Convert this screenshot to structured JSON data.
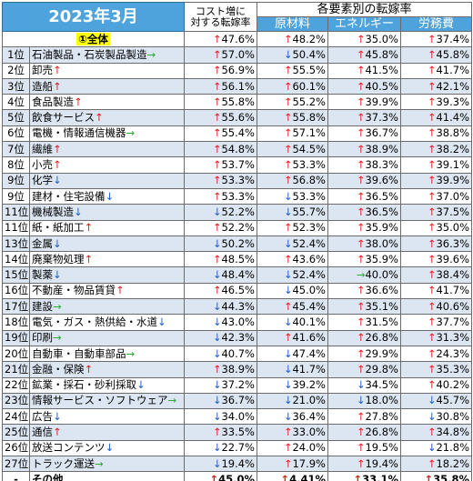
{
  "header": {
    "title": "2023年3月",
    "cost_label_line1": "コスト増に",
    "cost_label_line2": "対する転嫁率",
    "group_label": "各要素別の転嫁率",
    "col_raw": "原材料",
    "col_energy": "エネルギー",
    "col_labor": "労務費"
  },
  "colors": {
    "header_blue": "#4ea3dc",
    "alt_row": "#dce6f2",
    "highlight": "#ffff00",
    "up": "#e02020",
    "down": "#1a5fd0",
    "flat": "#2eaa3a"
  },
  "arrow_glyphs": {
    "up": "↑",
    "down": "↓",
    "flat": "→"
  },
  "total": {
    "label": "①全体",
    "cost": {
      "a": "up",
      "v": "47.6%"
    },
    "raw": {
      "a": "up",
      "v": "48.2%"
    },
    "energy": {
      "a": "up",
      "v": "35.0%"
    },
    "labor": {
      "a": "up",
      "v": "37.4%"
    }
  },
  "rows": [
    {
      "rank": "1位",
      "name": "石油製品・石炭製品製造",
      "trend": "flat",
      "cost": {
        "a": "up",
        "v": "57.0%"
      },
      "raw": {
        "a": "down",
        "v": "50.4%"
      },
      "energy": {
        "a": "up",
        "v": "45.8%"
      },
      "labor": {
        "a": "up",
        "v": "45.8%"
      }
    },
    {
      "rank": "2位",
      "name": "卸売",
      "trend": "up",
      "cost": {
        "a": "up",
        "v": "56.9%"
      },
      "raw": {
        "a": "up",
        "v": "55.5%"
      },
      "energy": {
        "a": "up",
        "v": "41.5%"
      },
      "labor": {
        "a": "up",
        "v": "41.7%"
      }
    },
    {
      "rank": "3位",
      "name": "造船",
      "trend": "up",
      "cost": {
        "a": "up",
        "v": "56.1%"
      },
      "raw": {
        "a": "up",
        "v": "60.1%"
      },
      "energy": {
        "a": "up",
        "v": "40.5%"
      },
      "labor": {
        "a": "up",
        "v": "42.1%"
      }
    },
    {
      "rank": "4位",
      "name": "食品製造",
      "trend": "up",
      "cost": {
        "a": "up",
        "v": "55.8%"
      },
      "raw": {
        "a": "up",
        "v": "55.2%"
      },
      "energy": {
        "a": "up",
        "v": "39.9%"
      },
      "labor": {
        "a": "up",
        "v": "39.3%"
      }
    },
    {
      "rank": "5位",
      "name": "飲食サービス",
      "trend": "up",
      "cost": {
        "a": "up",
        "v": "55.6%"
      },
      "raw": {
        "a": "up",
        "v": "55.8%"
      },
      "energy": {
        "a": "up",
        "v": "37.3%"
      },
      "labor": {
        "a": "up",
        "v": "41.4%"
      }
    },
    {
      "rank": "6位",
      "name": "電機・情報通信機器",
      "trend": "flat",
      "cost": {
        "a": "up",
        "v": "55.4%"
      },
      "raw": {
        "a": "up",
        "v": "57.1%"
      },
      "energy": {
        "a": "up",
        "v": "36.7%"
      },
      "labor": {
        "a": "up",
        "v": "38.8%"
      }
    },
    {
      "rank": "7位",
      "name": "繊維",
      "trend": "up",
      "cost": {
        "a": "up",
        "v": "54.8%"
      },
      "raw": {
        "a": "up",
        "v": "54.5%"
      },
      "energy": {
        "a": "up",
        "v": "38.9%"
      },
      "labor": {
        "a": "up",
        "v": "38.2%"
      }
    },
    {
      "rank": "8位",
      "name": "小売",
      "trend": "up",
      "cost": {
        "a": "up",
        "v": "53.7%"
      },
      "raw": {
        "a": "up",
        "v": "53.3%"
      },
      "energy": {
        "a": "up",
        "v": "38.3%"
      },
      "labor": {
        "a": "up",
        "v": "39.1%"
      }
    },
    {
      "rank": "9位",
      "name": "化学",
      "trend": "down",
      "cost": {
        "a": "up",
        "v": "53.3%"
      },
      "raw": {
        "a": "up",
        "v": "56.8%"
      },
      "energy": {
        "a": "up",
        "v": "39.6%"
      },
      "labor": {
        "a": "up",
        "v": "39.9%"
      }
    },
    {
      "rank": "9位",
      "name": "建材・住宅設備",
      "trend": "down",
      "cost": {
        "a": "up",
        "v": "53.3%"
      },
      "raw": {
        "a": "down",
        "v": "53.3%"
      },
      "energy": {
        "a": "up",
        "v": "36.5%"
      },
      "labor": {
        "a": "up",
        "v": "37.0%"
      }
    },
    {
      "rank": "11位",
      "name": "機械製造",
      "trend": "down",
      "cost": {
        "a": "down",
        "v": "52.2%"
      },
      "raw": {
        "a": "down",
        "v": "55.7%"
      },
      "energy": {
        "a": "up",
        "v": "36.5%"
      },
      "labor": {
        "a": "up",
        "v": "37.5%"
      }
    },
    {
      "rank": "11位",
      "name": "紙・紙加工",
      "trend": "up",
      "cost": {
        "a": "up",
        "v": "52.2%"
      },
      "raw": {
        "a": "up",
        "v": "52.3%"
      },
      "energy": {
        "a": "up",
        "v": "35.9%"
      },
      "labor": {
        "a": "up",
        "v": "35.0%"
      }
    },
    {
      "rank": "13位",
      "name": "金属",
      "trend": "down",
      "cost": {
        "a": "down",
        "v": "50.2%"
      },
      "raw": {
        "a": "down",
        "v": "52.4%"
      },
      "energy": {
        "a": "up",
        "v": "38.0%"
      },
      "labor": {
        "a": "up",
        "v": "36.3%"
      }
    },
    {
      "rank": "14位",
      "name": "廃棄物処理",
      "trend": "up",
      "cost": {
        "a": "up",
        "v": "48.5%"
      },
      "raw": {
        "a": "up",
        "v": "43.6%"
      },
      "energy": {
        "a": "up",
        "v": "35.9%"
      },
      "labor": {
        "a": "up",
        "v": "39.6%"
      }
    },
    {
      "rank": "15位",
      "name": "製薬",
      "trend": "down",
      "cost": {
        "a": "down",
        "v": "48.4%"
      },
      "raw": {
        "a": "down",
        "v": "52.4%"
      },
      "energy": {
        "a": "flat",
        "v": "40.0%"
      },
      "labor": {
        "a": "up",
        "v": "38.4%"
      }
    },
    {
      "rank": "16位",
      "name": "不動産・物品賃貸",
      "trend": "up",
      "cost": {
        "a": "up",
        "v": "46.5%"
      },
      "raw": {
        "a": "down",
        "v": "45.0%"
      },
      "energy": {
        "a": "up",
        "v": "36.6%"
      },
      "labor": {
        "a": "up",
        "v": "41.7%"
      }
    },
    {
      "rank": "17位",
      "name": "建設",
      "trend": "flat",
      "cost": {
        "a": "down",
        "v": "44.3%"
      },
      "raw": {
        "a": "up",
        "v": "45.4%"
      },
      "energy": {
        "a": "up",
        "v": "35.1%"
      },
      "labor": {
        "a": "up",
        "v": "40.6%"
      }
    },
    {
      "rank": "18位",
      "name": "電気・ガス・熱供給・水道",
      "trend": "down",
      "cost": {
        "a": "down",
        "v": "43.0%"
      },
      "raw": {
        "a": "down",
        "v": "40.1%"
      },
      "energy": {
        "a": "up",
        "v": "31.5%"
      },
      "labor": {
        "a": "up",
        "v": "37.7%"
      }
    },
    {
      "rank": "19位",
      "name": "印刷",
      "trend": "flat",
      "cost": {
        "a": "down",
        "v": "42.3%"
      },
      "raw": {
        "a": "up",
        "v": "41.6%"
      },
      "energy": {
        "a": "up",
        "v": "26.8%"
      },
      "labor": {
        "a": "up",
        "v": "31.3%"
      }
    },
    {
      "rank": "20位",
      "name": "自動車・自動車部品",
      "trend": "flat",
      "cost": {
        "a": "down",
        "v": "40.7%"
      },
      "raw": {
        "a": "down",
        "v": "47.4%"
      },
      "energy": {
        "a": "up",
        "v": "29.9%"
      },
      "labor": {
        "a": "up",
        "v": "24.3%"
      }
    },
    {
      "rank": "21位",
      "name": "金融・保険",
      "trend": "up",
      "cost": {
        "a": "up",
        "v": "38.9%"
      },
      "raw": {
        "a": "down",
        "v": "41.7%"
      },
      "energy": {
        "a": "up",
        "v": "29.8%"
      },
      "labor": {
        "a": "up",
        "v": "35.3%"
      }
    },
    {
      "rank": "22位",
      "name": "鉱業・採石・砂利採取",
      "trend": "down",
      "cost": {
        "a": "down",
        "v": "37.2%"
      },
      "raw": {
        "a": "down",
        "v": "39.2%"
      },
      "energy": {
        "a": "down",
        "v": "34.5%"
      },
      "labor": {
        "a": "up",
        "v": "40.2%"
      }
    },
    {
      "rank": "23位",
      "name": "情報サービス・ソフトウェア",
      "trend": "flat",
      "cost": {
        "a": "down",
        "v": "36.7%"
      },
      "raw": {
        "a": "down",
        "v": "21.0%"
      },
      "energy": {
        "a": "down",
        "v": "18.0%"
      },
      "labor": {
        "a": "down",
        "v": "45.7%"
      }
    },
    {
      "rank": "24位",
      "name": "広告",
      "trend": "down",
      "cost": {
        "a": "down",
        "v": "34.0%"
      },
      "raw": {
        "a": "down",
        "v": "36.4%"
      },
      "energy": {
        "a": "up",
        "v": "27.8%"
      },
      "labor": {
        "a": "down",
        "v": "30.8%"
      }
    },
    {
      "rank": "25位",
      "name": "通信",
      "trend": "up",
      "cost": {
        "a": "up",
        "v": "33.5%"
      },
      "raw": {
        "a": "up",
        "v": "33.0%"
      },
      "energy": {
        "a": "up",
        "v": "26.8%"
      },
      "labor": {
        "a": "up",
        "v": "34.8%"
      }
    },
    {
      "rank": "26位",
      "name": "放送コンテンツ",
      "trend": "down",
      "cost": {
        "a": "down",
        "v": "22.7%"
      },
      "raw": {
        "a": "up",
        "v": "24.0%"
      },
      "energy": {
        "a": "up",
        "v": "19.5%"
      },
      "labor": {
        "a": "down",
        "v": "21.8%"
      }
    },
    {
      "rank": "27位",
      "name": "トラック運送",
      "trend": "flat",
      "cost": {
        "a": "down",
        "v": "19.4%"
      },
      "raw": {
        "a": "up",
        "v": "17.9%"
      },
      "energy": {
        "a": "up",
        "v": "19.4%"
      },
      "labor": {
        "a": "up",
        "v": "18.2%"
      }
    },
    {
      "rank": "-",
      "name": "その他",
      "trend": "",
      "cost": {
        "a": "up",
        "v": "45.0%"
      },
      "raw": {
        "a": "up",
        "v": "4.41%"
      },
      "energy": {
        "a": "up",
        "v": "33.1%"
      },
      "labor": {
        "a": "up",
        "v": "35.8%"
      }
    }
  ]
}
